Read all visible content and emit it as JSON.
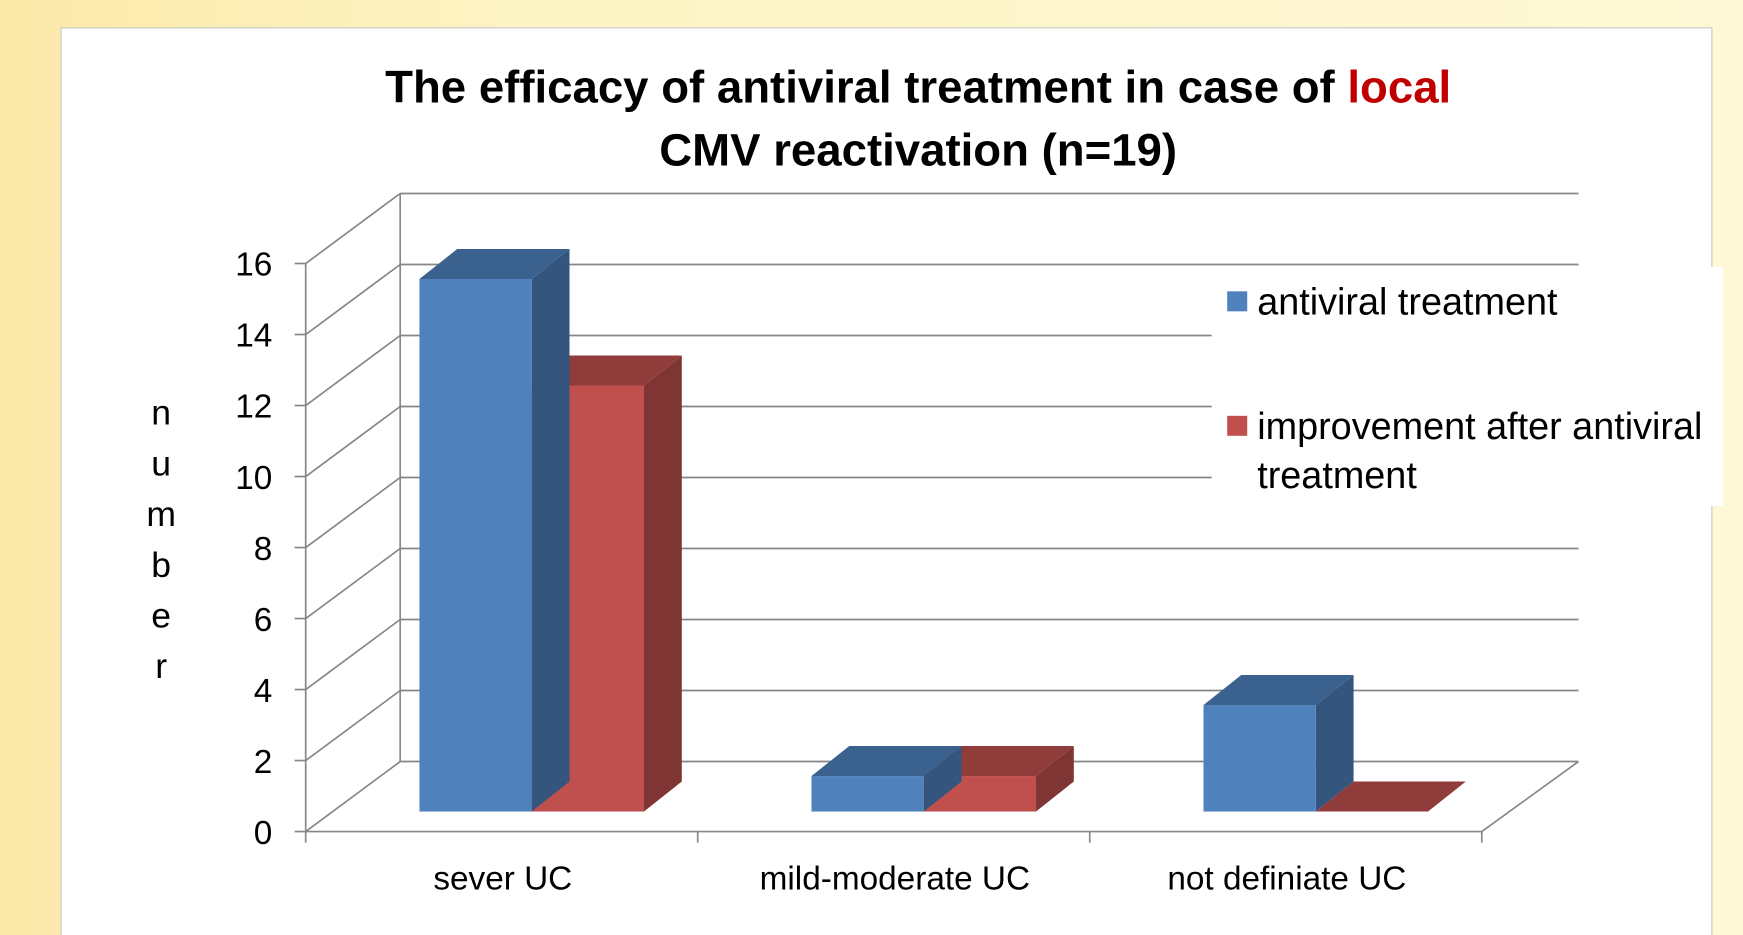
{
  "chart_data": {
    "type": "bar3d",
    "title": "The efficacy of antiviral treatment in case of local CMV reactivation (n=19)",
    "title_highlight": "local",
    "title_highlight_color": "#c00000",
    "y_label": "number",
    "categories": [
      "sever UC",
      "mild-moderate UC",
      "not definiate UC"
    ],
    "series": [
      {
        "name": "antiviral treatment",
        "color": "#4f81bd",
        "values": [
          15,
          1,
          3
        ]
      },
      {
        "name": "improvement after antiviral treatment",
        "color": "#c0504d",
        "values": [
          12,
          1,
          0
        ]
      }
    ],
    "ylim": [
      0,
      16
    ],
    "yticks": [
      0,
      2,
      4,
      6,
      8,
      10,
      12,
      14,
      16
    ],
    "grid": true,
    "legend": "right"
  }
}
